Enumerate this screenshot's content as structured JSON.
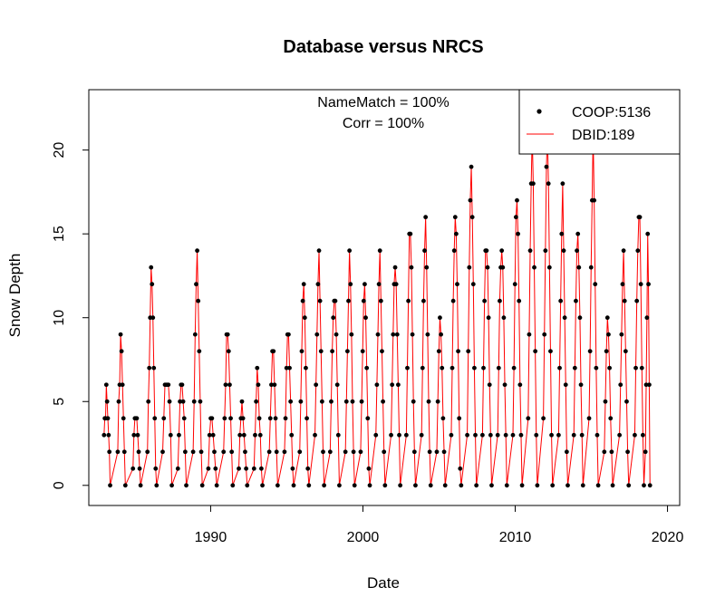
{
  "chart_data": {
    "type": "line",
    "title": "Database versus NRCS",
    "xlabel": "Date",
    "ylabel": "Snow Depth",
    "xlim": [
      1982.0,
      2020.8
    ],
    "ylim": [
      -1.2,
      23.6
    ],
    "x_ticks": [
      1990,
      2000,
      2010,
      2020
    ],
    "y_ticks": [
      0,
      5,
      10,
      15,
      20
    ],
    "annotations": [
      "NameMatch = 100%",
      "Corr = 100%"
    ],
    "legend": {
      "placement": "top-right",
      "entries": [
        {
          "label": "COOP:5136",
          "kind": "points",
          "color": "#000000"
        },
        {
          "label": "DBID:189",
          "kind": "line",
          "color": "#ff0000"
        }
      ]
    },
    "grid": false,
    "series": [
      {
        "name": "COOP:5136",
        "kind": "points",
        "color": "#000000",
        "seasons": [
          {
            "start": 1983.0,
            "end": 1983.4,
            "values": [
              3,
              4,
              4,
              6,
              5,
              4,
              3,
              2,
              0
            ]
          },
          {
            "start": 1983.9,
            "end": 1984.4,
            "values": [
              2,
              5,
              6,
              9,
              8,
              6,
              4,
              2,
              0
            ]
          },
          {
            "start": 1984.9,
            "end": 1985.4,
            "values": [
              1,
              3,
              4,
              4,
              4,
              3,
              2,
              1,
              0
            ]
          },
          {
            "start": 1985.85,
            "end": 1986.45,
            "values": [
              2,
              5,
              7,
              10,
              13,
              12,
              10,
              7,
              4,
              1,
              0
            ]
          },
          {
            "start": 1986.85,
            "end": 1987.45,
            "values": [
              2,
              4,
              6,
              6,
              6,
              6,
              5,
              3,
              0
            ]
          },
          {
            "start": 1987.85,
            "end": 1988.4,
            "values": [
              1,
              3,
              5,
              6,
              6,
              5,
              4,
              2,
              0
            ]
          },
          {
            "start": 1988.85,
            "end": 1989.45,
            "values": [
              2,
              5,
              9,
              12,
              14,
              11,
              8,
              5,
              2,
              0
            ]
          },
          {
            "start": 1989.85,
            "end": 1990.4,
            "values": [
              1,
              3,
              4,
              4,
              3,
              2,
              1,
              0
            ]
          },
          {
            "start": 1990.85,
            "end": 1991.45,
            "values": [
              2,
              4,
              6,
              9,
              9,
              8,
              6,
              4,
              2,
              0
            ]
          },
          {
            "start": 1991.85,
            "end": 1992.4,
            "values": [
              1,
              3,
              4,
              5,
              4,
              3,
              2,
              1,
              0
            ]
          },
          {
            "start": 1992.85,
            "end": 1993.4,
            "values": [
              1,
              3,
              5,
              7,
              6,
              4,
              3,
              1,
              0
            ]
          },
          {
            "start": 1993.85,
            "end": 1994.4,
            "values": [
              2,
              4,
              6,
              8,
              8,
              6,
              4,
              2,
              0
            ]
          },
          {
            "start": 1994.85,
            "end": 1995.45,
            "values": [
              2,
              4,
              7,
              9,
              9,
              7,
              5,
              3,
              1,
              0
            ]
          },
          {
            "start": 1995.85,
            "end": 1996.45,
            "values": [
              2,
              5,
              8,
              11,
              12,
              10,
              7,
              4,
              1,
              0
            ]
          },
          {
            "start": 1996.85,
            "end": 1997.45,
            "values": [
              3,
              6,
              9,
              12,
              14,
              11,
              8,
              5,
              2,
              0
            ]
          },
          {
            "start": 1997.85,
            "end": 1998.45,
            "values": [
              2,
              5,
              8,
              10,
              11,
              11,
              9,
              6,
              3,
              0
            ]
          },
          {
            "start": 1998.85,
            "end": 1999.45,
            "values": [
              2,
              5,
              8,
              11,
              14,
              12,
              9,
              5,
              2,
              0
            ]
          },
          {
            "start": 1999.85,
            "end": 2000.45,
            "values": [
              2,
              5,
              8,
              11,
              12,
              10,
              7,
              4,
              1,
              0
            ]
          },
          {
            "start": 2000.85,
            "end": 2001.45,
            "values": [
              3,
              6,
              9,
              12,
              14,
              11,
              8,
              5,
              2,
              0
            ]
          },
          {
            "start": 2001.85,
            "end": 2002.45,
            "values": [
              3,
              6,
              9,
              12,
              13,
              12,
              9,
              6,
              3,
              0
            ]
          },
          {
            "start": 2002.85,
            "end": 2003.45,
            "values": [
              3,
              7,
              11,
              15,
              15,
              13,
              9,
              5,
              2,
              0
            ]
          },
          {
            "start": 2003.85,
            "end": 2004.45,
            "values": [
              3,
              7,
              11,
              14,
              16,
              13,
              9,
              5,
              2,
              0
            ]
          },
          {
            "start": 2004.85,
            "end": 2005.4,
            "values": [
              2,
              5,
              8,
              10,
              9,
              7,
              4,
              2,
              0
            ]
          },
          {
            "start": 2005.8,
            "end": 2006.45,
            "values": [
              3,
              7,
              11,
              14,
              16,
              15,
              12,
              8,
              4,
              1,
              0
            ]
          },
          {
            "start": 2006.85,
            "end": 2007.45,
            "values": [
              3,
              8,
              13,
              17,
              19,
              16,
              12,
              7,
              3,
              0
            ]
          },
          {
            "start": 2007.85,
            "end": 2008.45,
            "values": [
              3,
              7,
              11,
              14,
              14,
              13,
              10,
              6,
              3,
              0
            ]
          },
          {
            "start": 2008.85,
            "end": 2009.45,
            "values": [
              3,
              7,
              11,
              13,
              14,
              13,
              10,
              6,
              3,
              0
            ]
          },
          {
            "start": 2009.85,
            "end": 2010.45,
            "values": [
              3,
              7,
              12,
              16,
              17,
              15,
              11,
              6,
              3,
              0
            ]
          },
          {
            "start": 2010.85,
            "end": 2011.45,
            "values": [
              4,
              9,
              14,
              18,
              21,
              18,
              13,
              8,
              3,
              0
            ]
          },
          {
            "start": 2011.85,
            "end": 2012.45,
            "values": [
              4,
              9,
              14,
              19,
              21,
              18,
              13,
              8,
              3,
              0
            ]
          },
          {
            "start": 2012.85,
            "end": 2013.45,
            "values": [
              3,
              7,
              11,
              15,
              18,
              14,
              10,
              6,
              2,
              0
            ]
          },
          {
            "start": 2013.85,
            "end": 2014.45,
            "values": [
              3,
              7,
              11,
              14,
              15,
              13,
              10,
              6,
              3,
              0
            ]
          },
          {
            "start": 2014.85,
            "end": 2015.45,
            "values": [
              4,
              8,
              13,
              17,
              21,
              17,
              12,
              7,
              3,
              0
            ]
          },
          {
            "start": 2015.85,
            "end": 2016.4,
            "values": [
              2,
              5,
              8,
              10,
              9,
              7,
              4,
              2,
              0
            ]
          },
          {
            "start": 2016.85,
            "end": 2017.45,
            "values": [
              3,
              6,
              9,
              12,
              14,
              11,
              8,
              5,
              2,
              0
            ]
          },
          {
            "start": 2017.85,
            "end": 2018.45,
            "values": [
              3,
              7,
              11,
              14,
              16,
              16,
              12,
              7,
              3,
              0
            ]
          },
          {
            "start": 2018.55,
            "end": 2018.85,
            "values": [
              2,
              6,
              10,
              15,
              12,
              6,
              0
            ]
          }
        ]
      },
      {
        "name": "DBID:189",
        "kind": "line",
        "color": "#ff0000",
        "same_values_as": "COOP:5136"
      }
    ]
  }
}
